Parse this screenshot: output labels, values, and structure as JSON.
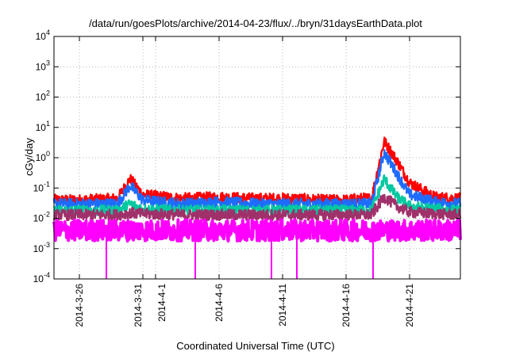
{
  "chart_data": {
    "type": "line",
    "title": "/data/run/goesPlots/archive/2014-04-23/flux/../bryn/31daysEarthData.plot",
    "xlabel": "Coordinated Universal Time (UTC)",
    "ylabel": "cGy/day",
    "y_scale": "log",
    "ylim": [
      0.0001,
      10000
    ],
    "y_ticks": [
      {
        "base": "10",
        "exp": "-4",
        "value": 0.0001
      },
      {
        "base": "10",
        "exp": "-3",
        "value": 0.001
      },
      {
        "base": "10",
        "exp": "-2",
        "value": 0.01
      },
      {
        "base": "10",
        "exp": "-1",
        "value": 0.1
      },
      {
        "base": "10",
        "exp": "0",
        "value": 1
      },
      {
        "base": "10",
        "exp": "1",
        "value": 10
      },
      {
        "base": "10",
        "exp": "2",
        "value": 100
      },
      {
        "base": "10",
        "exp": "3",
        "value": 1000
      },
      {
        "base": "10",
        "exp": "4",
        "value": 10000
      }
    ],
    "xlim": [
      "2014-03-24",
      "2014-04-25"
    ],
    "x_ticks": [
      "2014-3-26",
      "2014-3-31",
      "2014-4-1",
      "2014-4-6",
      "2014-4-11",
      "2014-4-16",
      "2014-4-21"
    ],
    "grid": true,
    "legend": "none",
    "series": [
      {
        "color": "#ff0000",
        "x": [
          "2014-03-24",
          "2014-03-26",
          "2014-03-29",
          "2014-03-30",
          "2014-03-31",
          "2014-04-03",
          "2014-04-06",
          "2014-04-09",
          "2014-04-12",
          "2014-04-14",
          "2014-04-15",
          "2014-04-16",
          "2014-04-17",
          "2014-04-18",
          "2014-04-19",
          "2014-04-20",
          "2014-04-21",
          "2014-04-23",
          "2014-04-25"
        ],
        "y": [
          0.04,
          0.04,
          0.045,
          0.2,
          0.06,
          0.045,
          0.05,
          0.045,
          0.045,
          0.04,
          0.04,
          0.04,
          0.045,
          0.045,
          3.5,
          0.8,
          0.15,
          0.05,
          0.045
        ]
      },
      {
        "color": "#1e6cff",
        "x": [
          "2014-03-24",
          "2014-03-26",
          "2014-03-29",
          "2014-03-30",
          "2014-03-31",
          "2014-04-03",
          "2014-04-06",
          "2014-04-09",
          "2014-04-12",
          "2014-04-14",
          "2014-04-15",
          "2014-04-16",
          "2014-04-17",
          "2014-04-18",
          "2014-04-19",
          "2014-04-20",
          "2014-04-21",
          "2014-04-23",
          "2014-04-25"
        ],
        "y": [
          0.03,
          0.03,
          0.03,
          0.12,
          0.04,
          0.03,
          0.035,
          0.03,
          0.03,
          0.03,
          0.03,
          0.03,
          0.03,
          0.03,
          1.5,
          0.3,
          0.06,
          0.035,
          0.03
        ]
      },
      {
        "color": "#00c8a0",
        "x": [
          "2014-03-24",
          "2014-03-26",
          "2014-03-29",
          "2014-03-30",
          "2014-03-31",
          "2014-04-03",
          "2014-04-06",
          "2014-04-09",
          "2014-04-12",
          "2014-04-14",
          "2014-04-15",
          "2014-04-16",
          "2014-04-17",
          "2014-04-18",
          "2014-04-19",
          "2014-04-20",
          "2014-04-21",
          "2014-04-23",
          "2014-04-25"
        ],
        "y": [
          0.018,
          0.018,
          0.018,
          0.03,
          0.02,
          0.018,
          0.018,
          0.018,
          0.018,
          0.018,
          0.018,
          0.018,
          0.018,
          0.018,
          0.2,
          0.05,
          0.025,
          0.02,
          0.018
        ]
      },
      {
        "color": "#a0306a",
        "x": [
          "2014-03-24",
          "2014-03-26",
          "2014-03-29",
          "2014-03-30",
          "2014-03-31",
          "2014-04-03",
          "2014-04-06",
          "2014-04-09",
          "2014-04-12",
          "2014-04-14",
          "2014-04-15",
          "2014-04-16",
          "2014-04-17",
          "2014-04-18",
          "2014-04-19",
          "2014-04-20",
          "2014-04-21",
          "2014-04-23",
          "2014-04-25"
        ],
        "y": [
          0.013,
          0.013,
          0.013,
          0.015,
          0.014,
          0.013,
          0.013,
          0.013,
          0.013,
          0.013,
          0.013,
          0.013,
          0.013,
          0.013,
          0.05,
          0.025,
          0.016,
          0.014,
          0.013
        ]
      },
      {
        "color": "#ff00ff",
        "x": [
          "2014-03-24",
          "2014-03-28",
          "2014-03-31",
          "2014-04-04",
          "2014-04-10",
          "2014-04-12",
          "2014-04-15",
          "2014-04-16",
          "2014-04-18",
          "2014-04-19",
          "2014-04-21",
          "2014-04-25"
        ],
        "y": [
          0.004,
          0.004,
          0.004,
          0.004,
          0.004,
          0.004,
          0.004,
          0.004,
          0.004,
          0.004,
          0.004,
          0.004
        ]
      }
    ],
    "magenta_dips": [
      "2014-03-28",
      "2014-04-04",
      "2014-04-10",
      "2014-04-12",
      "2014-04-18"
    ]
  }
}
